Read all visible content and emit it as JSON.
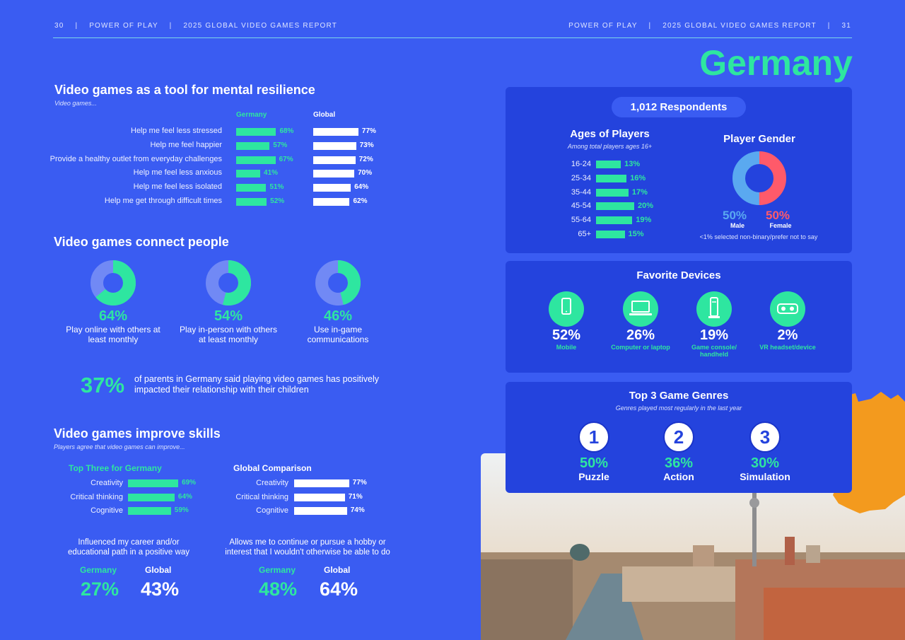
{
  "header": {
    "left_page": "30",
    "left_brand": "POWER OF PLAY",
    "left_report": "2025 GLOBAL VIDEO GAMES REPORT",
    "right_brand": "POWER OF PLAY",
    "right_report": "2025 GLOBAL VIDEO GAMES REPORT",
    "right_page": "31",
    "sep": "|"
  },
  "country": "Germany",
  "resilience": {
    "title": "Video games as a tool for mental resilience",
    "subtitle": "Video games...",
    "col_germany": "Germany",
    "col_global": "Global",
    "rows": [
      {
        "label": "Help me feel less stressed",
        "germany": 68,
        "germany_text": "68%",
        "global": 77,
        "global_text": "77%"
      },
      {
        "label": "Help me feel happier",
        "germany": 57,
        "germany_text": "57%",
        "global": 73,
        "global_text": "73%"
      },
      {
        "label": "Provide a healthy outlet from everyday challenges",
        "germany": 67,
        "germany_text": "67%",
        "global": 72,
        "global_text": "72%"
      },
      {
        "label": "Help me feel less anxious",
        "germany": 41,
        "germany_text": "41%",
        "global": 70,
        "global_text": "70%"
      },
      {
        "label": "Help me feel less isolated",
        "germany": 51,
        "germany_text": "51%",
        "global": 64,
        "global_text": "64%"
      },
      {
        "label": "Help me get through difficult times",
        "germany": 52,
        "germany_text": "52%",
        "global": 62,
        "global_text": "62%"
      }
    ]
  },
  "connect": {
    "title": "Video games connect people",
    "donuts": [
      {
        "value": 64,
        "text": "64%",
        "label": "Play online with others at least monthly"
      },
      {
        "value": 54,
        "text": "54%",
        "label": "Play in-person with others at least monthly"
      },
      {
        "value": 46,
        "text": "46%",
        "label": "Use in-game communications"
      }
    ],
    "parents_pct": "37%",
    "parents_text": "of parents in Germany said playing video games has positively impacted their relationship with their children"
  },
  "skills": {
    "title": "Video games improve skills",
    "subtitle": "Players agree that video games can improve...",
    "top_title": "Top Three for Germany",
    "global_title": "Global Comparison",
    "germany_rows": [
      {
        "label": "Creativity",
        "value": 69,
        "text": "69%"
      },
      {
        "label": "Critical thinking",
        "value": 64,
        "text": "64%"
      },
      {
        "label": "Cognitive",
        "value": 59,
        "text": "59%"
      }
    ],
    "global_rows": [
      {
        "label": "Creativity",
        "value": 77,
        "text": "77%"
      },
      {
        "label": "Critical thinking",
        "value": 71,
        "text": "71%"
      },
      {
        "label": "Cognitive",
        "value": 74,
        "text": "74%"
      }
    ],
    "career": {
      "label": "Influenced my career and/or educational path in a positive way",
      "germany_label": "Germany",
      "global_label": "Global",
      "germany": "27%",
      "global": "43%"
    },
    "hobby": {
      "label": "Allows me to continue or pursue a hobby or interest that I wouldn't otherwise be able to do",
      "germany_label": "Germany",
      "global_label": "Global",
      "germany": "48%",
      "global": "64%"
    }
  },
  "respondents": "1,012 Respondents",
  "ages": {
    "title": "Ages of Players",
    "subtitle": "Among total players ages 16+",
    "rows": [
      {
        "label": "16-24",
        "value": 13,
        "text": "13%"
      },
      {
        "label": "25-34",
        "value": 16,
        "text": "16%"
      },
      {
        "label": "35-44",
        "value": 17,
        "text": "17%"
      },
      {
        "label": "45-54",
        "value": 20,
        "text": "20%"
      },
      {
        "label": "55-64",
        "value": 19,
        "text": "19%"
      },
      {
        "label": "65+",
        "value": 15,
        "text": "15%"
      }
    ]
  },
  "gender": {
    "title": "Player Gender",
    "male_pct": 50,
    "male_text": "50%",
    "male_label": "Male",
    "female_pct": 50,
    "female_text": "50%",
    "female_label": "Female",
    "note": "<1% selected non-binary/prefer not to say",
    "male_color": "#5aa9f0",
    "female_color": "#ff5a6a"
  },
  "devices": {
    "title": "Favorite Devices",
    "items": [
      {
        "icon": "mobile-phone-icon",
        "text": "52%",
        "label": "Mobile"
      },
      {
        "icon": "laptop-icon",
        "text": "26%",
        "label": "Computer or laptop"
      },
      {
        "icon": "game-console-icon",
        "text": "19%",
        "label": "Game console/ handheld"
      },
      {
        "icon": "vr-headset-icon",
        "text": "2%",
        "label": "VR headset/device"
      }
    ]
  },
  "genres": {
    "title": "Top 3 Game Genres",
    "subtitle": "Genres played most regularly in the last year",
    "items": [
      {
        "rank": "1",
        "text": "50%",
        "label": "Puzzle"
      },
      {
        "rank": "2",
        "text": "36%",
        "label": "Action"
      },
      {
        "rank": "3",
        "text": "30%",
        "label": "Simulation"
      }
    ]
  },
  "colors": {
    "background": "#3a5cf2",
    "panel": "#2443dd",
    "accent_green": "#2ee6a0",
    "map_orange": "#f39a1e"
  }
}
